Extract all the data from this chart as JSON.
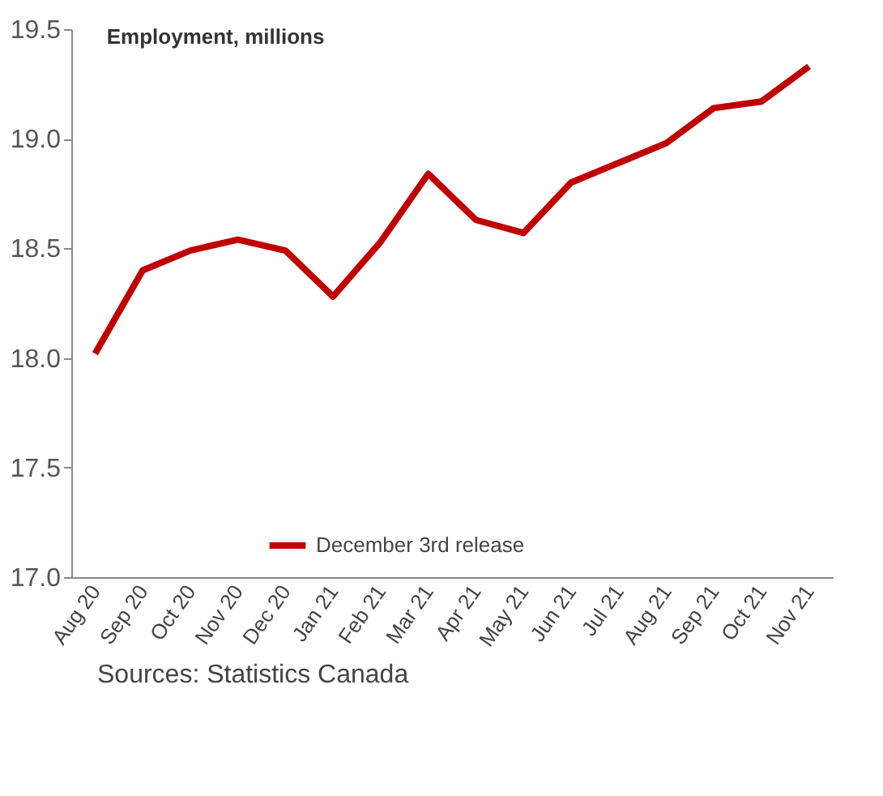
{
  "chart_data": {
    "type": "line",
    "title": "Employment, millions",
    "categories": [
      "Aug 20",
      "Sep 20",
      "Oct 20",
      "Nov 20",
      "Dec 20",
      "Jan 21",
      "Feb 21",
      "Mar 21",
      "Apr 21",
      "May 21",
      "Jun 21",
      "Jul 21",
      "Aug 21",
      "Sep 21",
      "Oct 21",
      "Nov 21"
    ],
    "series": [
      {
        "name": "December 3rd release",
        "color": "#c00000",
        "values": [
          18.02,
          18.4,
          18.49,
          18.54,
          18.49,
          18.28,
          18.53,
          18.84,
          18.63,
          18.57,
          18.8,
          18.89,
          18.98,
          19.14,
          19.17,
          19.33
        ]
      }
    ],
    "ylim": [
      17,
      19.5
    ],
    "yticks": [
      {
        "value": 17,
        "label": "17.0"
      },
      17.5,
      {
        "value": 18,
        "label": "18.0"
      },
      18.5,
      {
        "value": 19,
        "label": "19.0"
      },
      19.5
    ],
    "grid": false,
    "legend": "bottom",
    "marker": "none",
    "line_style": "solid",
    "annotations": [
      "Sources: Statistics Canada"
    ]
  }
}
